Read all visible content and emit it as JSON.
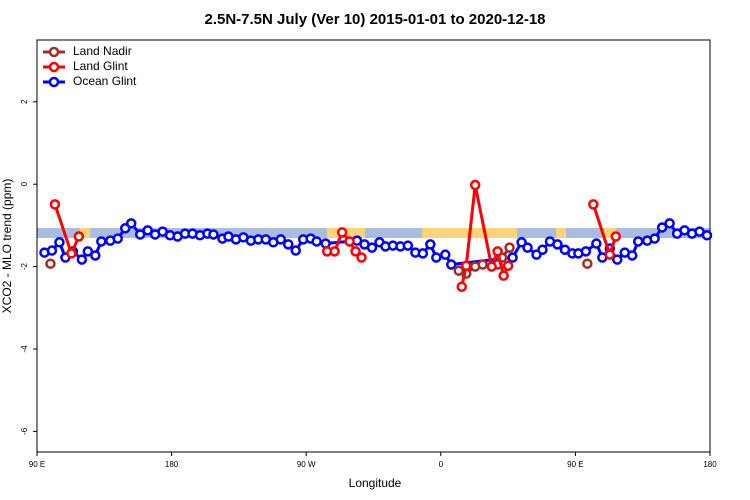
{
  "chart_data": {
    "type": "line",
    "title": "2.5N-7.5N July (Ver 10)   2015-01-01 to 2020-12-18",
    "xlabel": "Longitude",
    "ylabel": "XCO2 - MLO trend (ppm)",
    "xlim": [
      90,
      540
    ],
    "ylim": [
      -6.5,
      3.5
    ],
    "xticks": [
      {
        "value": 90,
        "label": "90 E"
      },
      {
        "value": 180,
        "label": "180"
      },
      {
        "value": 270,
        "label": "90 W"
      },
      {
        "value": 360,
        "label": "0"
      },
      {
        "value": 450,
        "label": "90 E"
      },
      {
        "value": 540,
        "label": "180"
      }
    ],
    "yticks": [
      -6,
      -4,
      -2,
      0,
      2
    ],
    "legend": "top-left",
    "series": [
      {
        "name": "Land Nadir",
        "color": "#a52a2a",
        "x": [
          99,
          null,
          372,
          377,
          383,
          388,
          398,
          401,
          406,
          null,
          458
        ],
        "values": [
          -1.93,
          null,
          -2.1,
          -2.17,
          -2.0,
          -1.95,
          -1.95,
          -1.78,
          -1.54,
          null,
          -1.93
        ]
      },
      {
        "name": "Land Glint",
        "color": "#ff0000",
        "x": [
          102,
          113,
          118,
          null,
          284,
          289,
          294,
          299,
          303,
          307,
          null,
          374,
          377,
          383,
          394,
          398,
          402,
          405,
          null,
          462,
          473,
          477
        ],
        "values": [
          -0.49,
          -1.68,
          -1.27,
          null,
          -1.63,
          -1.63,
          -1.17,
          -1.39,
          -1.63,
          -1.78,
          null,
          -2.49,
          -1.98,
          -0.02,
          -2.0,
          -1.63,
          -2.22,
          -1.98,
          null,
          -0.49,
          -1.71,
          -1.27
        ]
      },
      {
        "name": "Ocean Glint",
        "color": "#0000ff",
        "x": [
          95,
          100,
          105,
          109,
          114,
          120,
          124,
          129,
          133,
          139,
          144,
          149,
          153,
          159,
          164,
          169,
          174,
          179,
          184,
          189,
          194,
          199,
          204,
          208,
          214,
          218,
          223,
          228,
          233,
          238,
          243,
          248,
          253,
          258,
          263,
          268,
          273,
          277,
          283,
          304,
          309,
          314,
          319,
          323,
          328,
          333,
          338,
          343,
          348,
          353,
          357,
          363,
          367,
          408,
          414,
          418,
          424,
          428,
          433,
          438,
          443,
          448,
          452,
          457,
          464,
          468,
          473,
          478,
          483,
          488,
          492,
          498,
          503,
          508,
          513,
          518,
          523,
          528,
          533,
          538
        ],
        "values": [
          -1.66,
          -1.61,
          -1.41,
          -1.78,
          -1.63,
          -1.83,
          -1.63,
          -1.73,
          -1.39,
          -1.37,
          -1.32,
          -1.07,
          -0.95,
          -1.22,
          -1.12,
          -1.22,
          -1.15,
          -1.24,
          -1.27,
          -1.2,
          -1.2,
          -1.24,
          -1.2,
          -1.22,
          -1.32,
          -1.27,
          -1.34,
          -1.29,
          -1.37,
          -1.34,
          -1.34,
          -1.41,
          -1.34,
          -1.46,
          -1.61,
          -1.34,
          -1.32,
          -1.39,
          -1.44,
          -1.37,
          -1.46,
          -1.54,
          -1.41,
          -1.51,
          -1.49,
          -1.51,
          -1.49,
          -1.66,
          -1.68,
          -1.46,
          -1.78,
          -1.71,
          -1.95,
          -1.78,
          -1.41,
          -1.54,
          -1.71,
          -1.59,
          -1.39,
          -1.46,
          -1.59,
          -1.68,
          -1.68,
          -1.63,
          -1.44,
          -1.78,
          -1.56,
          -1.83,
          -1.66,
          -1.73,
          -1.39,
          -1.37,
          -1.32,
          -1.05,
          -0.95,
          -1.2,
          -1.12,
          -1.2,
          -1.15,
          -1.24
        ]
      }
    ]
  }
}
